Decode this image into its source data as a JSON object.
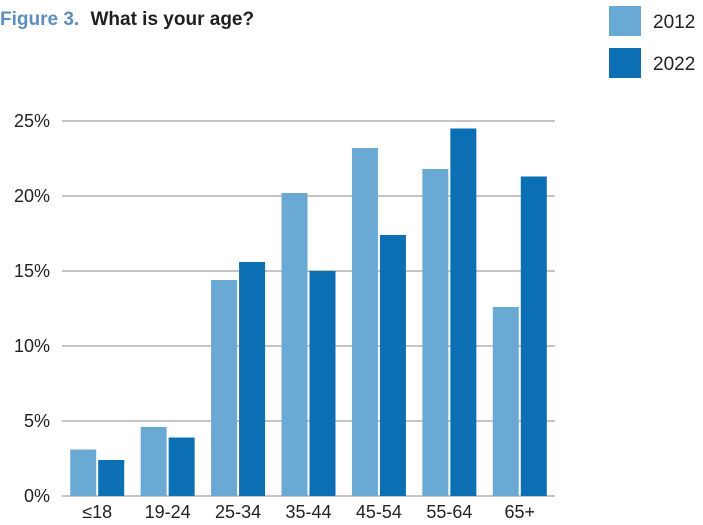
{
  "figure": {
    "number_label": "Figure 3.",
    "title": "What is your age?"
  },
  "colors": {
    "series_2012": "#6aa9d4",
    "series_2022": "#0d6fb3",
    "figure_label": "#5b8fbf",
    "title_text": "#1f1f1f",
    "gridline": "#b0b0b0",
    "axis_text": "#222222"
  },
  "chart_data": {
    "type": "bar",
    "title": "What is your age?",
    "categories": [
      "≤18",
      "19-24",
      "25-34",
      "35-44",
      "45-54",
      "55-64",
      "65+"
    ],
    "series": [
      {
        "name": "2012",
        "values": [
          3.1,
          4.6,
          14.4,
          20.2,
          23.2,
          21.8,
          12.6
        ]
      },
      {
        "name": "2022",
        "values": [
          2.4,
          3.9,
          15.6,
          15.0,
          17.4,
          24.5,
          21.3
        ]
      }
    ],
    "ylim": [
      0,
      25
    ],
    "yticks": [
      0,
      5,
      10,
      15,
      20,
      25
    ],
    "ytick_labels": [
      "0%",
      "5%",
      "10%",
      "15%",
      "20%",
      "25%"
    ],
    "xlabel": "",
    "ylabel": "",
    "grid": true,
    "legend_position": "top-right"
  }
}
